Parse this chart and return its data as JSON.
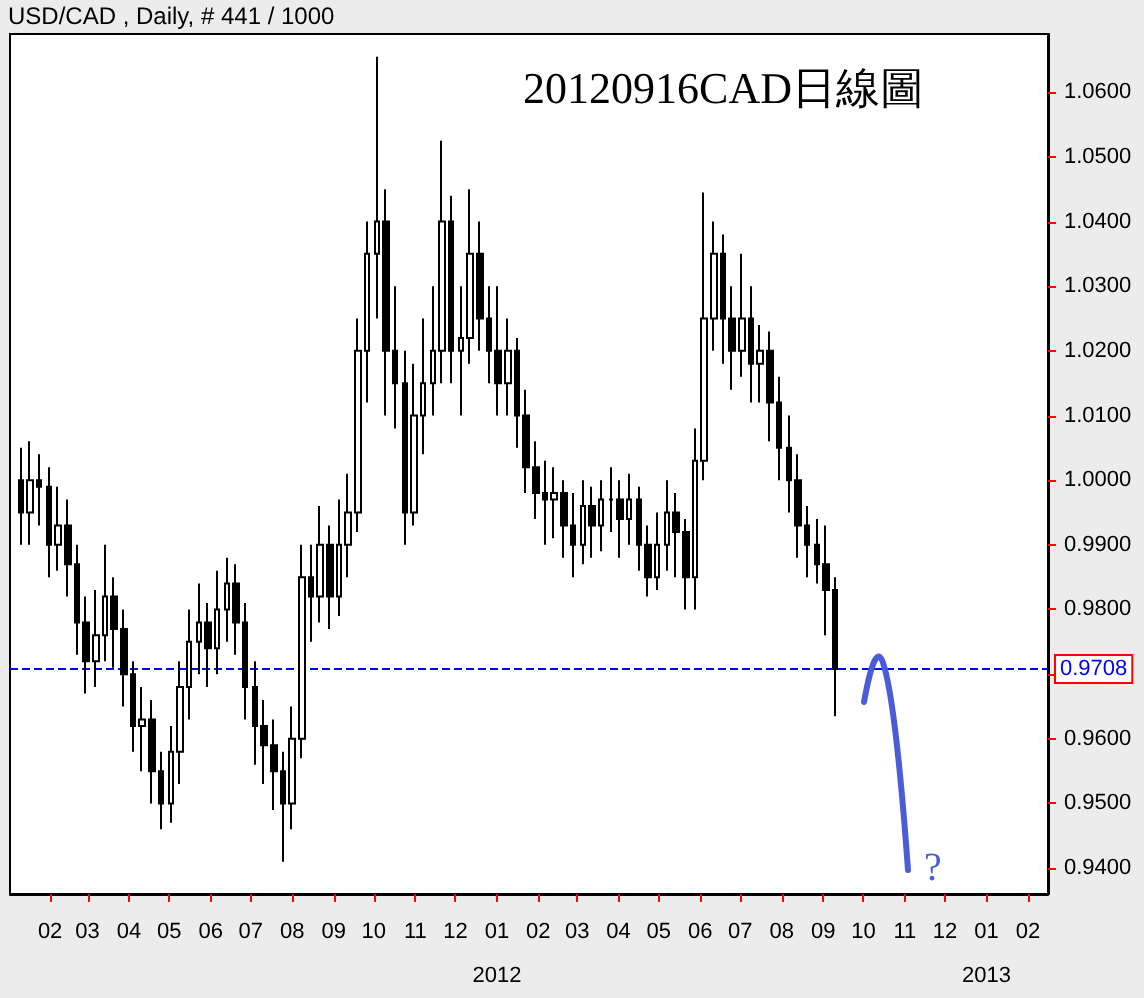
{
  "chart_data": {
    "type": "candlestick",
    "title": "20120916CAD日線圖",
    "annotations": [
      "USD/CAD , Daily, # 441 / 1000",
      "?"
    ],
    "x": [
      "2011-01-10",
      "2011-01-17",
      "2011-01-24",
      "2011-01-31",
      "2011-02-07",
      "2011-02-14",
      "2011-02-21",
      "2011-02-28",
      "2011-03-07",
      "2011-03-14",
      "2011-03-21",
      "2011-03-28",
      "2011-04-04",
      "2011-04-11",
      "2011-04-18",
      "2011-04-25",
      "2011-05-02",
      "2011-05-09",
      "2011-05-16",
      "2011-05-23",
      "2011-05-30",
      "2011-06-06",
      "2011-06-13",
      "2011-06-20",
      "2011-06-27",
      "2011-07-04",
      "2011-07-11",
      "2011-07-18",
      "2011-07-25",
      "2011-08-01",
      "2011-08-08",
      "2011-08-15",
      "2011-08-22",
      "2011-08-29",
      "2011-09-05",
      "2011-09-12",
      "2011-09-19",
      "2011-09-26",
      "2011-10-03",
      "2011-10-10",
      "2011-10-17",
      "2011-10-24",
      "2011-10-31",
      "2011-11-07",
      "2011-11-14",
      "2011-11-21",
      "2011-11-28",
      "2011-12-05",
      "2011-12-12",
      "2011-12-19",
      "2011-12-26",
      "2012-01-02",
      "2012-01-09",
      "2012-01-16",
      "2012-01-23",
      "2012-01-30",
      "2012-02-06",
      "2012-02-13",
      "2012-02-20",
      "2012-02-27",
      "2012-03-05",
      "2012-03-12",
      "2012-03-19",
      "2012-03-26",
      "2012-04-02",
      "2012-04-09",
      "2012-04-16",
      "2012-04-23",
      "2012-04-30",
      "2012-05-07",
      "2012-05-14",
      "2012-05-21",
      "2012-05-28",
      "2012-06-04",
      "2012-06-11",
      "2012-06-18",
      "2012-06-25",
      "2012-07-02",
      "2012-07-09",
      "2012-07-16",
      "2012-07-23",
      "2012-07-30",
      "2012-08-06",
      "2012-08-13",
      "2012-08-20",
      "2012-08-27",
      "2012-09-03",
      "2012-09-10"
    ],
    "ohlc": [
      [
        1.0,
        1.005,
        0.99,
        0.995
      ],
      [
        0.995,
        1.006,
        0.99,
        1.0
      ],
      [
        1.0,
        1.004,
        0.993,
        0.999
      ],
      [
        0.999,
        1.002,
        0.985,
        0.99
      ],
      [
        0.99,
        0.999,
        0.986,
        0.993
      ],
      [
        0.993,
        0.997,
        0.982,
        0.987
      ],
      [
        0.987,
        0.99,
        0.973,
        0.978
      ],
      [
        0.978,
        0.982,
        0.967,
        0.972
      ],
      [
        0.972,
        0.983,
        0.968,
        0.976
      ],
      [
        0.976,
        0.99,
        0.972,
        0.982
      ],
      [
        0.982,
        0.985,
        0.971,
        0.977
      ],
      [
        0.977,
        0.98,
        0.965,
        0.97
      ],
      [
        0.97,
        0.972,
        0.958,
        0.962
      ],
      [
        0.962,
        0.968,
        0.955,
        0.963
      ],
      [
        0.963,
        0.966,
        0.95,
        0.955
      ],
      [
        0.955,
        0.958,
        0.946,
        0.95
      ],
      [
        0.95,
        0.962,
        0.947,
        0.958
      ],
      [
        0.958,
        0.972,
        0.953,
        0.968
      ],
      [
        0.968,
        0.98,
        0.963,
        0.975
      ],
      [
        0.975,
        0.984,
        0.97,
        0.978
      ],
      [
        0.978,
        0.981,
        0.968,
        0.974
      ],
      [
        0.974,
        0.986,
        0.97,
        0.98
      ],
      [
        0.98,
        0.988,
        0.975,
        0.984
      ],
      [
        0.984,
        0.987,
        0.973,
        0.978
      ],
      [
        0.978,
        0.981,
        0.963,
        0.968
      ],
      [
        0.968,
        0.972,
        0.956,
        0.962
      ],
      [
        0.962,
        0.966,
        0.953,
        0.959
      ],
      [
        0.959,
        0.963,
        0.949,
        0.955
      ],
      [
        0.955,
        0.958,
        0.941,
        0.95
      ],
      [
        0.95,
        0.965,
        0.946,
        0.96
      ],
      [
        0.96,
        0.99,
        0.957,
        0.985
      ],
      [
        0.985,
        0.99,
        0.975,
        0.982
      ],
      [
        0.982,
        0.996,
        0.978,
        0.99
      ],
      [
        0.99,
        0.993,
        0.977,
        0.982
      ],
      [
        0.982,
        0.997,
        0.979,
        0.99
      ],
      [
        0.99,
        1.001,
        0.985,
        0.995
      ],
      [
        0.995,
        1.025,
        0.992,
        1.02
      ],
      [
        1.02,
        1.04,
        1.012,
        1.035
      ],
      [
        1.035,
        1.0655,
        1.025,
        1.04
      ],
      [
        1.04,
        1.045,
        1.01,
        1.02
      ],
      [
        1.02,
        1.03,
        1.008,
        1.015
      ],
      [
        1.015,
        1.02,
        0.99,
        0.995
      ],
      [
        0.995,
        1.018,
        0.993,
        1.01
      ],
      [
        1.01,
        1.025,
        1.004,
        1.015
      ],
      [
        1.015,
        1.03,
        1.01,
        1.02
      ],
      [
        1.02,
        1.0525,
        1.015,
        1.04
      ],
      [
        1.04,
        1.044,
        1.015,
        1.02
      ],
      [
        1.02,
        1.03,
        1.01,
        1.022
      ],
      [
        1.022,
        1.045,
        1.018,
        1.035
      ],
      [
        1.035,
        1.04,
        1.02,
        1.025
      ],
      [
        1.025,
        1.03,
        1.015,
        1.02
      ],
      [
        1.02,
        1.03,
        1.01,
        1.015
      ],
      [
        1.015,
        1.025,
        1.01,
        1.02
      ],
      [
        1.02,
        1.022,
        1.005,
        1.01
      ],
      [
        1.01,
        1.014,
        0.998,
        1.002
      ],
      [
        1.002,
        1.006,
        0.994,
        0.998
      ],
      [
        0.998,
        1.003,
        0.99,
        0.997
      ],
      [
        0.997,
        1.002,
        0.991,
        0.998
      ],
      [
        0.998,
        1.0,
        0.988,
        0.993
      ],
      [
        0.993,
        0.998,
        0.985,
        0.99
      ],
      [
        0.99,
        1.0,
        0.987,
        0.996
      ],
      [
        0.996,
        0.999,
        0.988,
        0.993
      ],
      [
        0.993,
        1.0,
        0.989,
        0.997
      ],
      [
        0.997,
        1.002,
        0.992,
        0.997
      ],
      [
        0.997,
        1.0,
        0.988,
        0.994
      ],
      [
        0.994,
        1.001,
        0.99,
        0.997
      ],
      [
        0.997,
        0.999,
        0.986,
        0.99
      ],
      [
        0.99,
        0.993,
        0.982,
        0.985
      ],
      [
        0.985,
        0.995,
        0.983,
        0.99
      ],
      [
        0.99,
        1.0,
        0.986,
        0.995
      ],
      [
        0.995,
        0.998,
        0.985,
        0.992
      ],
      [
        0.992,
        0.994,
        0.98,
        0.985
      ],
      [
        0.985,
        1.008,
        0.98,
        1.003
      ],
      [
        1.003,
        1.0445,
        1.0,
        1.025
      ],
      [
        1.025,
        1.04,
        1.02,
        1.035
      ],
      [
        1.035,
        1.038,
        1.018,
        1.025
      ],
      [
        1.025,
        1.03,
        1.014,
        1.02
      ],
      [
        1.02,
        1.035,
        1.016,
        1.025
      ],
      [
        1.025,
        1.03,
        1.012,
        1.018
      ],
      [
        1.018,
        1.024,
        1.012,
        1.02
      ],
      [
        1.02,
        1.023,
        1.006,
        1.012
      ],
      [
        1.012,
        1.016,
        1.0,
        1.005
      ],
      [
        1.005,
        1.01,
        0.995,
        1.0
      ],
      [
        1.0,
        1.004,
        0.988,
        0.993
      ],
      [
        0.993,
        0.996,
        0.985,
        0.99
      ],
      [
        0.99,
        0.994,
        0.984,
        0.987
      ],
      [
        0.987,
        0.993,
        0.976,
        0.983
      ],
      [
        0.983,
        0.985,
        0.9635,
        0.9708
      ]
    ],
    "color": "#000000",
    "xlim": [
      "2011-01-02",
      "2013-02-16"
    ],
    "xticks": [
      {
        "value": "2011-02-01",
        "label": "02"
      },
      {
        "value": "2011-03-01",
        "label": "03"
      },
      {
        "value": "2011-04-01",
        "label": "04"
      },
      {
        "value": "2011-05-01",
        "label": "05"
      },
      {
        "value": "2011-06-01",
        "label": "06"
      },
      {
        "value": "2011-07-01",
        "label": "07"
      },
      {
        "value": "2011-08-01",
        "label": "08"
      },
      {
        "value": "2011-09-01",
        "label": "09"
      },
      {
        "value": "2011-10-01",
        "label": "10"
      },
      {
        "value": "2011-11-01",
        "label": "11"
      },
      {
        "value": "2011-12-01",
        "label": "12"
      },
      {
        "value": "2012-01-01",
        "label": "01\n2012"
      },
      {
        "value": "2012-02-01",
        "label": "02"
      },
      {
        "value": "2012-03-01",
        "label": "03"
      },
      {
        "value": "2012-04-01",
        "label": "04"
      },
      {
        "value": "2012-05-01",
        "label": "05"
      },
      {
        "value": "2012-06-01",
        "label": "06"
      },
      {
        "value": "2012-07-01",
        "label": "07"
      },
      {
        "value": "2012-08-01",
        "label": "08"
      },
      {
        "value": "2012-09-01",
        "label": "09"
      },
      {
        "value": "2012-10-01",
        "label": "10"
      },
      {
        "value": "2012-11-01",
        "label": "11"
      },
      {
        "value": "2012-12-01",
        "label": "12"
      },
      {
        "value": "2013-01-01",
        "label": "01\n2013"
      },
      {
        "value": "2013-02-01",
        "label": "02"
      }
    ],
    "ylim": [
      0.936,
      1.069
    ],
    "yticks": [
      {
        "value": 0.94,
        "label": "0.9400"
      },
      {
        "value": 0.95,
        "label": "0.9500"
      },
      {
        "value": 0.96,
        "label": "0.9600"
      },
      {
        "value": 0.97,
        "label": null
      },
      {
        "value": 0.98,
        "label": "0.9800"
      },
      {
        "value": 0.99,
        "label": "0.9900"
      },
      {
        "value": 1.0,
        "label": "1.0000"
      },
      {
        "value": 1.01,
        "label": "1.0100"
      },
      {
        "value": 1.02,
        "label": "1.0200"
      },
      {
        "value": 1.03,
        "label": "1.0300"
      },
      {
        "value": 1.04,
        "label": "1.0400"
      },
      {
        "value": 1.05,
        "label": "1.0500"
      },
      {
        "value": 1.06,
        "label": "1.0600"
      }
    ],
    "ref_lines": [
      {
        "axis": "y",
        "value": 0.9708,
        "label": "0.9708",
        "color": "#0000ff",
        "line_style": "dashed"
      }
    ],
    "grid": false
  }
}
